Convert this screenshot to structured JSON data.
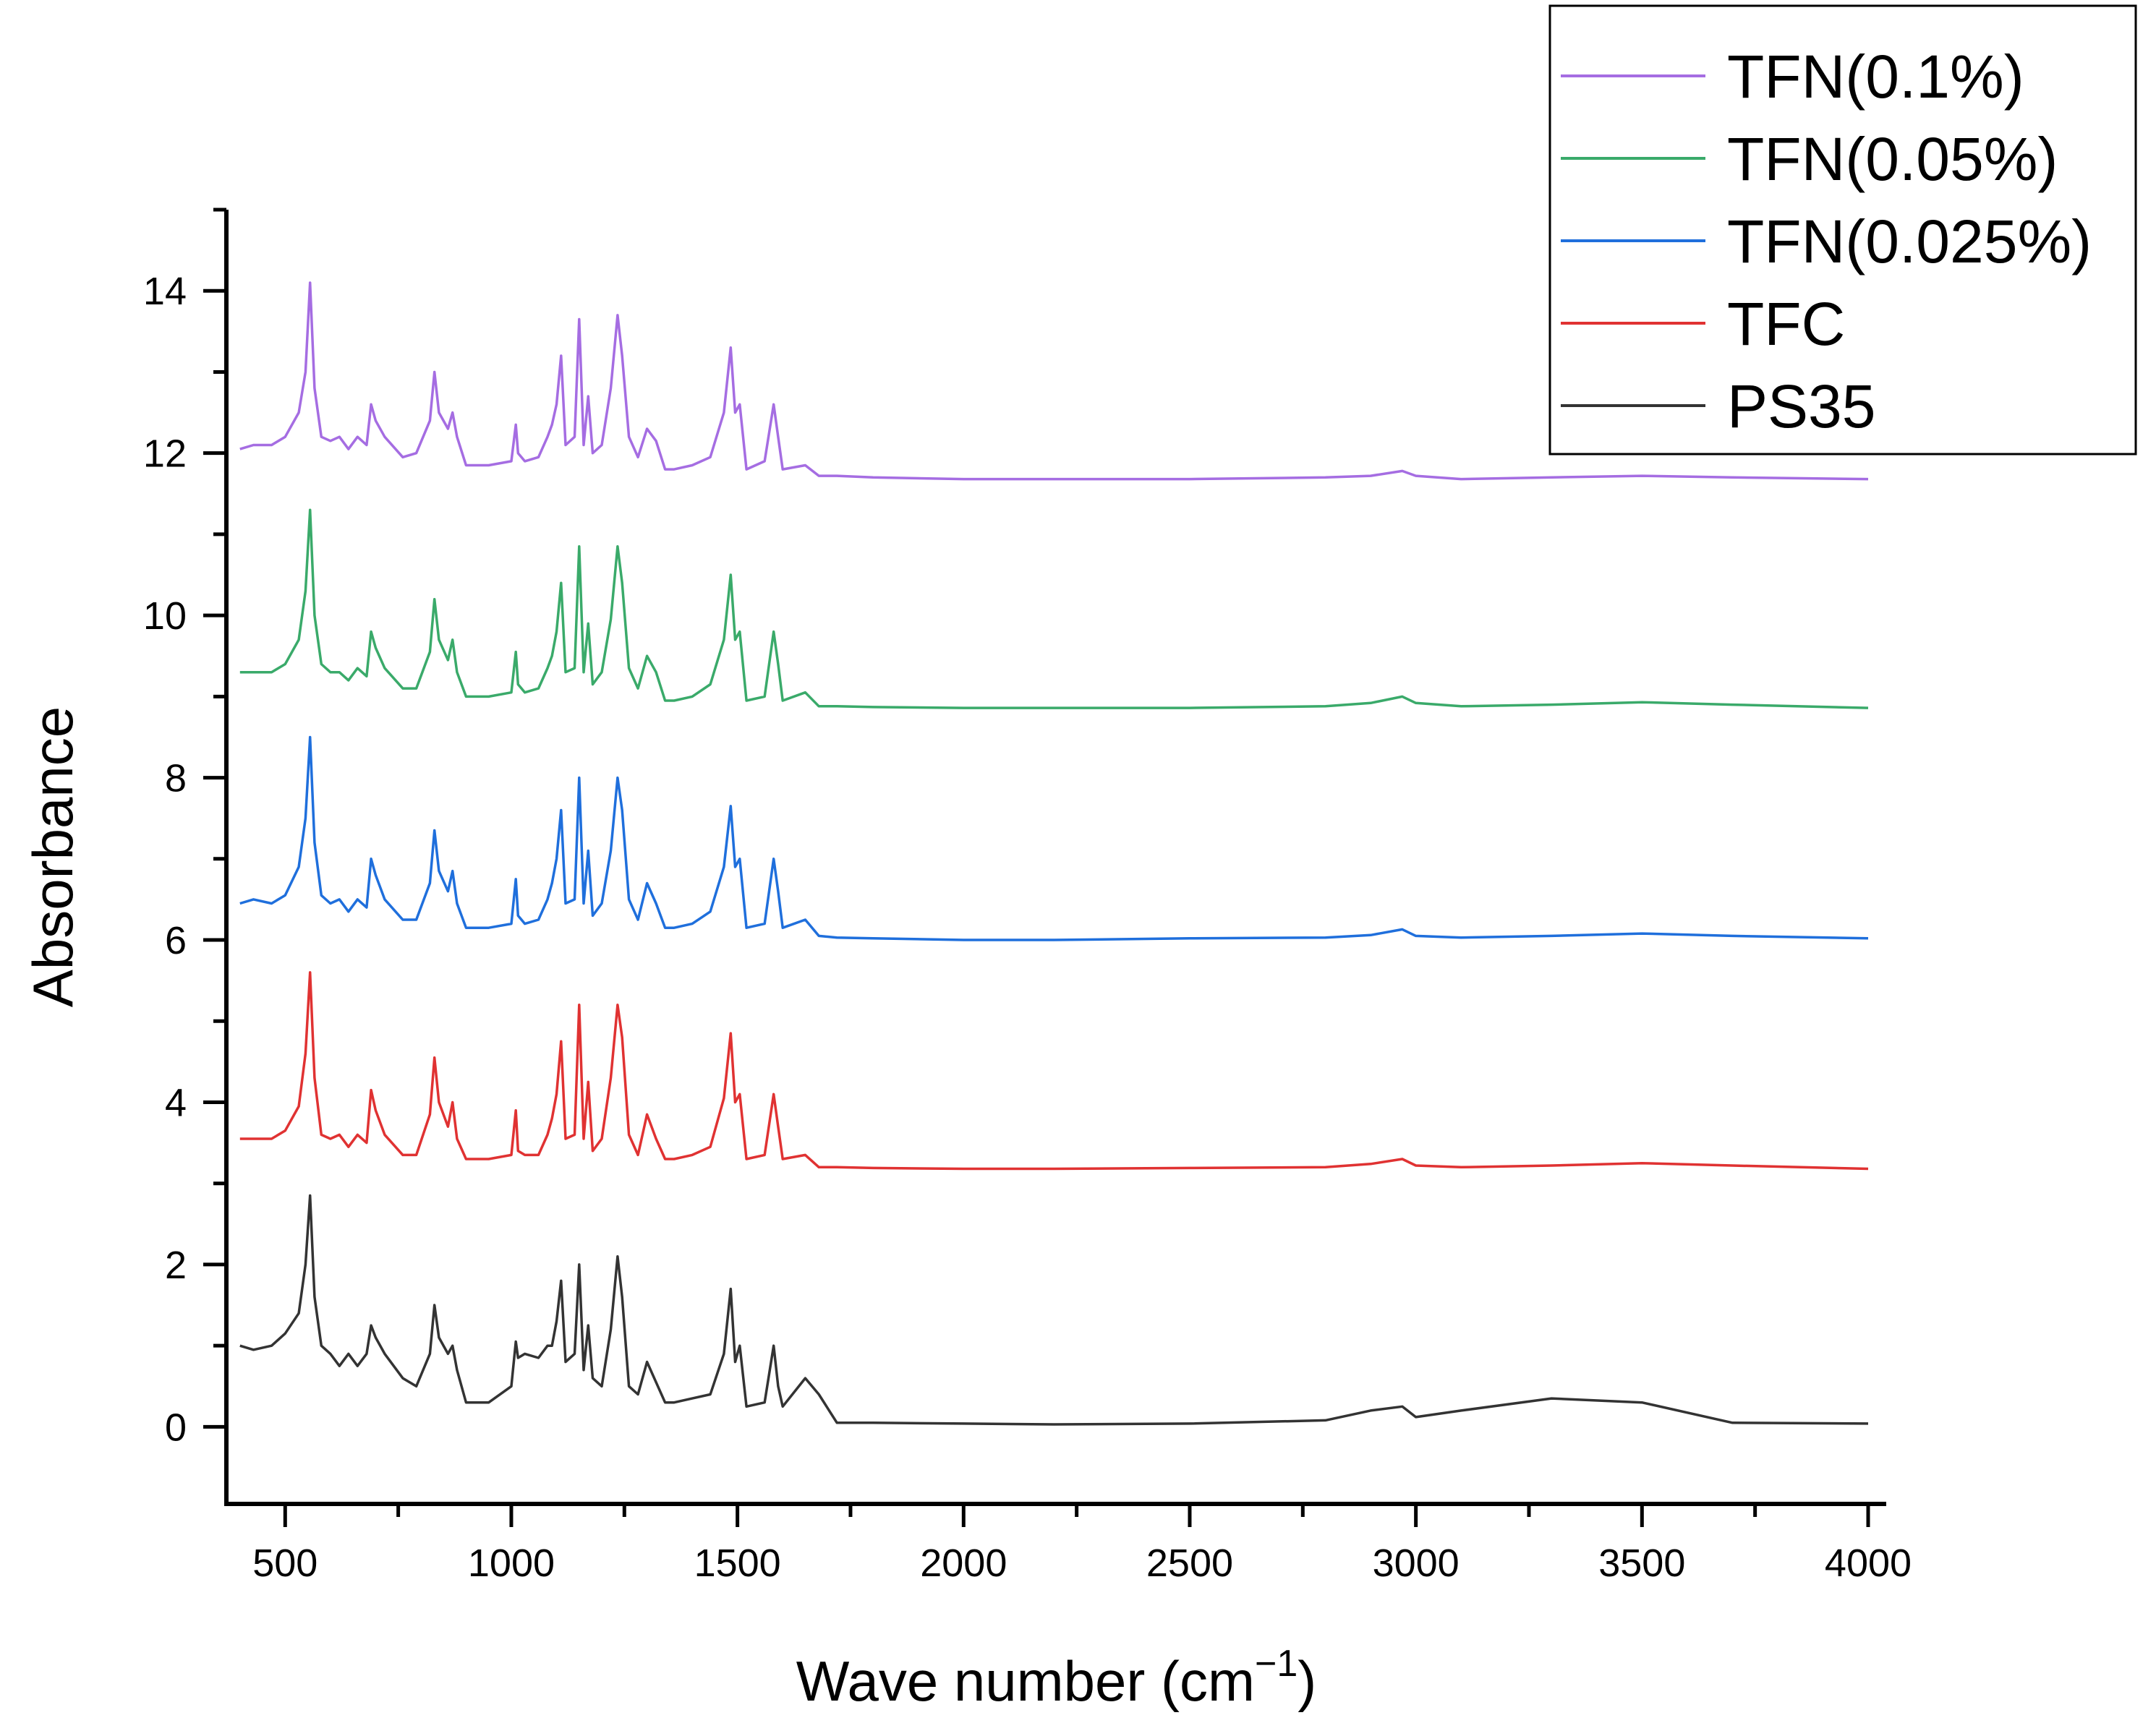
{
  "chart_data": {
    "type": "line",
    "title": "",
    "xlabel": "Wave number (cm",
    "xlabel_sup": "−1",
    "xlabel_close": ")",
    "ylabel": "Absorbance",
    "xlim": [
      370,
      4040
    ],
    "ylim": [
      -0.95,
      15.0
    ],
    "xticks": [
      500,
      1000,
      1500,
      2000,
      2500,
      3000,
      3500,
      4000
    ],
    "yticks": [
      0,
      2,
      4,
      6,
      8,
      10,
      12,
      14
    ],
    "grid": false,
    "legend_position": "top-right",
    "legend_order": [
      "TFN(0.1%)",
      "TFN(0.05%)",
      "TFN(0.025%)",
      "TFC",
      "PS35"
    ],
    "series": [
      {
        "name": "TFN(0.1%)",
        "color": "#a56de2",
        "x": [
          400,
          430,
          470,
          500,
          530,
          545,
          555,
          565,
          580,
          600,
          620,
          640,
          660,
          680,
          690,
          700,
          720,
          760,
          790,
          820,
          830,
          840,
          860,
          870,
          880,
          900,
          950,
          1000,
          1010,
          1015,
          1030,
          1060,
          1080,
          1090,
          1100,
          1110,
          1120,
          1140,
          1150,
          1160,
          1170,
          1180,
          1200,
          1220,
          1235,
          1245,
          1260,
          1280,
          1300,
          1320,
          1340,
          1360,
          1400,
          1440,
          1470,
          1485,
          1495,
          1505,
          1520,
          1560,
          1580,
          1590,
          1600,
          1650,
          1680,
          1720,
          1800,
          2000,
          2200,
          2500,
          2800,
          2900,
          2970,
          3000,
          3100,
          3300,
          3500,
          3700,
          4000
        ],
        "y": [
          12.05,
          12.1,
          12.1,
          12.2,
          12.5,
          13.0,
          14.1,
          12.8,
          12.2,
          12.15,
          12.2,
          12.05,
          12.2,
          12.1,
          12.6,
          12.4,
          12.2,
          11.95,
          12.0,
          12.4,
          13.0,
          12.5,
          12.3,
          12.5,
          12.2,
          11.85,
          11.85,
          11.9,
          12.35,
          12.0,
          11.9,
          11.95,
          12.2,
          12.35,
          12.6,
          13.2,
          12.1,
          12.2,
          13.65,
          12.1,
          12.7,
          12.0,
          12.1,
          12.8,
          13.7,
          13.2,
          12.2,
          11.95,
          12.3,
          12.15,
          11.8,
          11.8,
          11.85,
          11.95,
          12.5,
          13.3,
          12.5,
          12.6,
          11.8,
          11.9,
          12.6,
          12.2,
          11.8,
          11.85,
          11.72,
          11.72,
          11.7,
          11.68,
          11.68,
          11.68,
          11.7,
          11.72,
          11.78,
          11.72,
          11.68,
          11.7,
          11.72,
          11.7,
          11.68
        ]
      },
      {
        "name": "TFN(0.05%)",
        "color": "#3aaa6a",
        "x": [
          400,
          430,
          470,
          500,
          530,
          545,
          555,
          565,
          580,
          600,
          620,
          640,
          660,
          680,
          690,
          700,
          720,
          760,
          790,
          820,
          830,
          840,
          860,
          870,
          880,
          900,
          950,
          1000,
          1010,
          1015,
          1030,
          1060,
          1080,
          1090,
          1100,
          1110,
          1120,
          1140,
          1150,
          1160,
          1170,
          1180,
          1200,
          1220,
          1235,
          1245,
          1260,
          1280,
          1300,
          1320,
          1340,
          1360,
          1400,
          1440,
          1470,
          1485,
          1495,
          1505,
          1520,
          1560,
          1580,
          1590,
          1600,
          1650,
          1680,
          1720,
          1800,
          2000,
          2200,
          2500,
          2800,
          2900,
          2970,
          3000,
          3100,
          3300,
          3500,
          3700,
          4000
        ],
        "y": [
          9.3,
          9.3,
          9.3,
          9.4,
          9.7,
          10.3,
          11.3,
          10.0,
          9.4,
          9.3,
          9.3,
          9.2,
          9.35,
          9.25,
          9.8,
          9.6,
          9.35,
          9.1,
          9.1,
          9.55,
          10.2,
          9.7,
          9.45,
          9.7,
          9.3,
          9.0,
          9.0,
          9.05,
          9.55,
          9.15,
          9.05,
          9.1,
          9.35,
          9.5,
          9.8,
          10.4,
          9.3,
          9.35,
          10.85,
          9.3,
          9.9,
          9.15,
          9.3,
          9.95,
          10.85,
          10.4,
          9.35,
          9.1,
          9.5,
          9.3,
          8.95,
          8.95,
          9.0,
          9.15,
          9.7,
          10.5,
          9.7,
          9.8,
          8.95,
          9.0,
          9.8,
          9.4,
          8.95,
          9.05,
          8.88,
          8.88,
          8.87,
          8.86,
          8.86,
          8.86,
          8.88,
          8.92,
          9.0,
          8.92,
          8.88,
          8.9,
          8.93,
          8.9,
          8.86
        ]
      },
      {
        "name": "TFN(0.025%)",
        "color": "#1f6fdc",
        "x": [
          400,
          430,
          470,
          500,
          530,
          545,
          555,
          565,
          580,
          600,
          620,
          640,
          660,
          680,
          690,
          700,
          720,
          760,
          790,
          820,
          830,
          840,
          860,
          870,
          880,
          900,
          950,
          1000,
          1010,
          1015,
          1030,
          1060,
          1080,
          1090,
          1100,
          1110,
          1120,
          1140,
          1150,
          1160,
          1170,
          1180,
          1200,
          1220,
          1235,
          1245,
          1260,
          1280,
          1300,
          1320,
          1340,
          1360,
          1400,
          1440,
          1470,
          1485,
          1495,
          1505,
          1520,
          1560,
          1580,
          1590,
          1600,
          1650,
          1680,
          1720,
          1800,
          2000,
          2200,
          2500,
          2800,
          2900,
          2970,
          3000,
          3100,
          3300,
          3500,
          3700,
          4000
        ],
        "y": [
          6.45,
          6.5,
          6.45,
          6.55,
          6.9,
          7.5,
          8.5,
          7.2,
          6.55,
          6.45,
          6.5,
          6.35,
          6.5,
          6.4,
          7.0,
          6.8,
          6.5,
          6.25,
          6.25,
          6.7,
          7.35,
          6.85,
          6.6,
          6.85,
          6.45,
          6.15,
          6.15,
          6.2,
          6.75,
          6.3,
          6.2,
          6.25,
          6.5,
          6.7,
          7.0,
          7.6,
          6.45,
          6.5,
          8.0,
          6.45,
          7.1,
          6.3,
          6.45,
          7.1,
          8.0,
          7.6,
          6.5,
          6.25,
          6.7,
          6.45,
          6.15,
          6.15,
          6.2,
          6.35,
          6.9,
          7.65,
          6.9,
          7.0,
          6.15,
          6.2,
          7.0,
          6.6,
          6.15,
          6.25,
          6.05,
          6.03,
          6.02,
          6.0,
          6.0,
          6.02,
          6.03,
          6.06,
          6.13,
          6.05,
          6.03,
          6.05,
          6.08,
          6.05,
          6.02
        ]
      },
      {
        "name": "TFC",
        "color": "#e03232",
        "x": [
          400,
          430,
          470,
          500,
          530,
          545,
          555,
          565,
          580,
          600,
          620,
          640,
          660,
          680,
          690,
          700,
          720,
          760,
          790,
          820,
          830,
          840,
          860,
          870,
          880,
          900,
          950,
          1000,
          1010,
          1015,
          1030,
          1060,
          1080,
          1090,
          1100,
          1110,
          1120,
          1140,
          1150,
          1160,
          1170,
          1180,
          1200,
          1220,
          1235,
          1245,
          1260,
          1280,
          1300,
          1320,
          1340,
          1360,
          1400,
          1440,
          1470,
          1485,
          1495,
          1505,
          1520,
          1560,
          1580,
          1590,
          1600,
          1650,
          1680,
          1720,
          1800,
          2000,
          2200,
          2500,
          2800,
          2900,
          2970,
          3000,
          3100,
          3300,
          3500,
          3700,
          4000
        ],
        "y": [
          3.55,
          3.55,
          3.55,
          3.65,
          3.95,
          4.6,
          5.6,
          4.3,
          3.6,
          3.55,
          3.6,
          3.45,
          3.6,
          3.5,
          4.15,
          3.9,
          3.6,
          3.35,
          3.35,
          3.85,
          4.55,
          4.0,
          3.7,
          4.0,
          3.55,
          3.3,
          3.3,
          3.35,
          3.9,
          3.4,
          3.35,
          3.35,
          3.6,
          3.8,
          4.1,
          4.75,
          3.55,
          3.6,
          5.2,
          3.55,
          4.25,
          3.4,
          3.55,
          4.3,
          5.2,
          4.8,
          3.6,
          3.35,
          3.85,
          3.55,
          3.3,
          3.3,
          3.35,
          3.45,
          4.05,
          4.85,
          4.0,
          4.1,
          3.3,
          3.35,
          4.1,
          3.7,
          3.3,
          3.35,
          3.2,
          3.2,
          3.19,
          3.18,
          3.18,
          3.19,
          3.2,
          3.24,
          3.3,
          3.22,
          3.2,
          3.22,
          3.25,
          3.22,
          3.18
        ]
      },
      {
        "name": "PS35",
        "color": "#333333",
        "x": [
          400,
          430,
          470,
          500,
          530,
          545,
          555,
          565,
          580,
          600,
          620,
          640,
          660,
          680,
          690,
          700,
          720,
          760,
          790,
          820,
          830,
          840,
          860,
          870,
          880,
          900,
          950,
          1000,
          1010,
          1015,
          1030,
          1060,
          1080,
          1090,
          1100,
          1110,
          1120,
          1140,
          1150,
          1160,
          1170,
          1180,
          1200,
          1220,
          1235,
          1245,
          1260,
          1280,
          1300,
          1320,
          1340,
          1360,
          1400,
          1440,
          1470,
          1485,
          1495,
          1505,
          1520,
          1560,
          1580,
          1590,
          1600,
          1650,
          1680,
          1720,
          1800,
          2000,
          2200,
          2500,
          2800,
          2900,
          2970,
          3000,
          3100,
          3300,
          3500,
          3700,
          4000
        ],
        "y": [
          1.0,
          0.95,
          1.0,
          1.15,
          1.4,
          2.0,
          2.85,
          1.6,
          1.0,
          0.9,
          0.75,
          0.9,
          0.75,
          0.9,
          1.25,
          1.1,
          0.9,
          0.6,
          0.5,
          0.9,
          1.5,
          1.1,
          0.9,
          1.0,
          0.7,
          0.3,
          0.3,
          0.5,
          1.05,
          0.85,
          0.9,
          0.85,
          1.0,
          1.0,
          1.3,
          1.8,
          0.8,
          0.9,
          2.0,
          0.7,
          1.25,
          0.6,
          0.5,
          1.2,
          2.1,
          1.6,
          0.5,
          0.4,
          0.8,
          0.55,
          0.3,
          0.3,
          0.35,
          0.4,
          0.9,
          1.7,
          0.8,
          1.0,
          0.25,
          0.3,
          1.0,
          0.5,
          0.25,
          0.6,
          0.4,
          0.05,
          0.05,
          0.04,
          0.03,
          0.04,
          0.08,
          0.2,
          0.25,
          0.12,
          0.2,
          0.35,
          0.3,
          0.05,
          0.04
        ]
      }
    ]
  }
}
